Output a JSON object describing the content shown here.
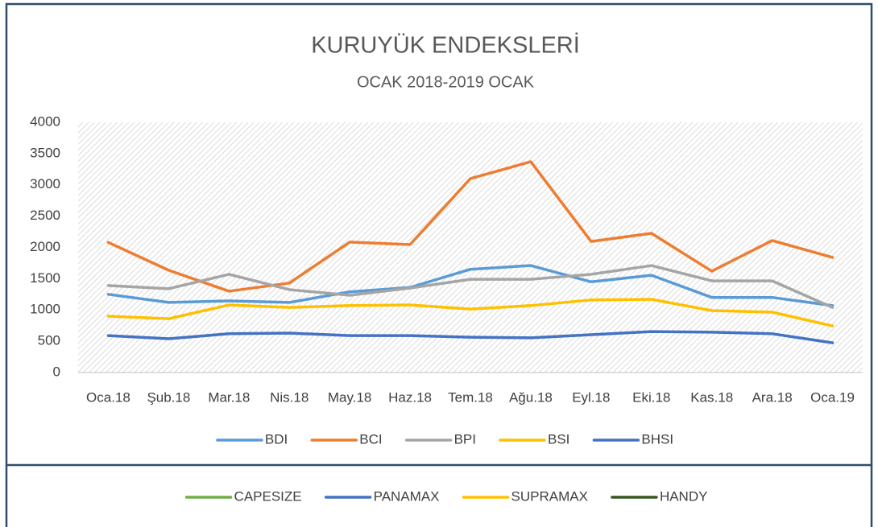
{
  "chart_data": [
    {
      "type": "line",
      "title": "KURUYÜK ENDEKSLERİ",
      "subtitle": "OCAK 2018-2019 OCAK",
      "categories": [
        "Oca.18",
        "Şub.18",
        "Mar.18",
        "Nis.18",
        "May.18",
        "Haz.18",
        "Tem.18",
        "Ağu.18",
        "Eyl.18",
        "Eki.18",
        "Kas.18",
        "Ara.18",
        "Oca.19"
      ],
      "series": [
        {
          "name": "BDI",
          "color": "#5b9bd5",
          "values": [
            1250,
            1120,
            1145,
            1120,
            1290,
            1360,
            1650,
            1710,
            1450,
            1555,
            1200,
            1200,
            1070
          ]
        },
        {
          "name": "BCI",
          "color": "#ed7d31",
          "values": [
            2080,
            1635,
            1300,
            1430,
            2085,
            2045,
            3100,
            3370,
            2095,
            2225,
            1620,
            2110,
            1840
          ]
        },
        {
          "name": "BPI",
          "color": "#a5a5a5",
          "values": [
            1390,
            1340,
            1570,
            1325,
            1235,
            1350,
            1490,
            1490,
            1570,
            1710,
            1465,
            1465,
            1040
          ]
        },
        {
          "name": "BSI",
          "color": "#ffc000",
          "values": [
            900,
            860,
            1080,
            1040,
            1070,
            1080,
            1015,
            1070,
            1160,
            1170,
            990,
            965,
            745
          ]
        },
        {
          "name": "BHSI",
          "color": "#4472c4",
          "values": [
            590,
            540,
            620,
            630,
            590,
            590,
            565,
            555,
            605,
            655,
            645,
            620,
            475
          ]
        }
      ],
      "ylim": [
        0,
        4000
      ],
      "yticks": [
        0,
        500,
        1000,
        1500,
        2000,
        2500,
        3000,
        3500,
        4000
      ],
      "grid": false
    },
    {
      "type": "line",
      "series": [
        {
          "name": "CAPESIZE",
          "color": "#70ad47"
        },
        {
          "name": "PANAMAX",
          "color": "#4472c4"
        },
        {
          "name": "SUPRAMAX",
          "color": "#ffc000"
        },
        {
          "name": "HANDY",
          "color": "#375623"
        }
      ]
    }
  ]
}
